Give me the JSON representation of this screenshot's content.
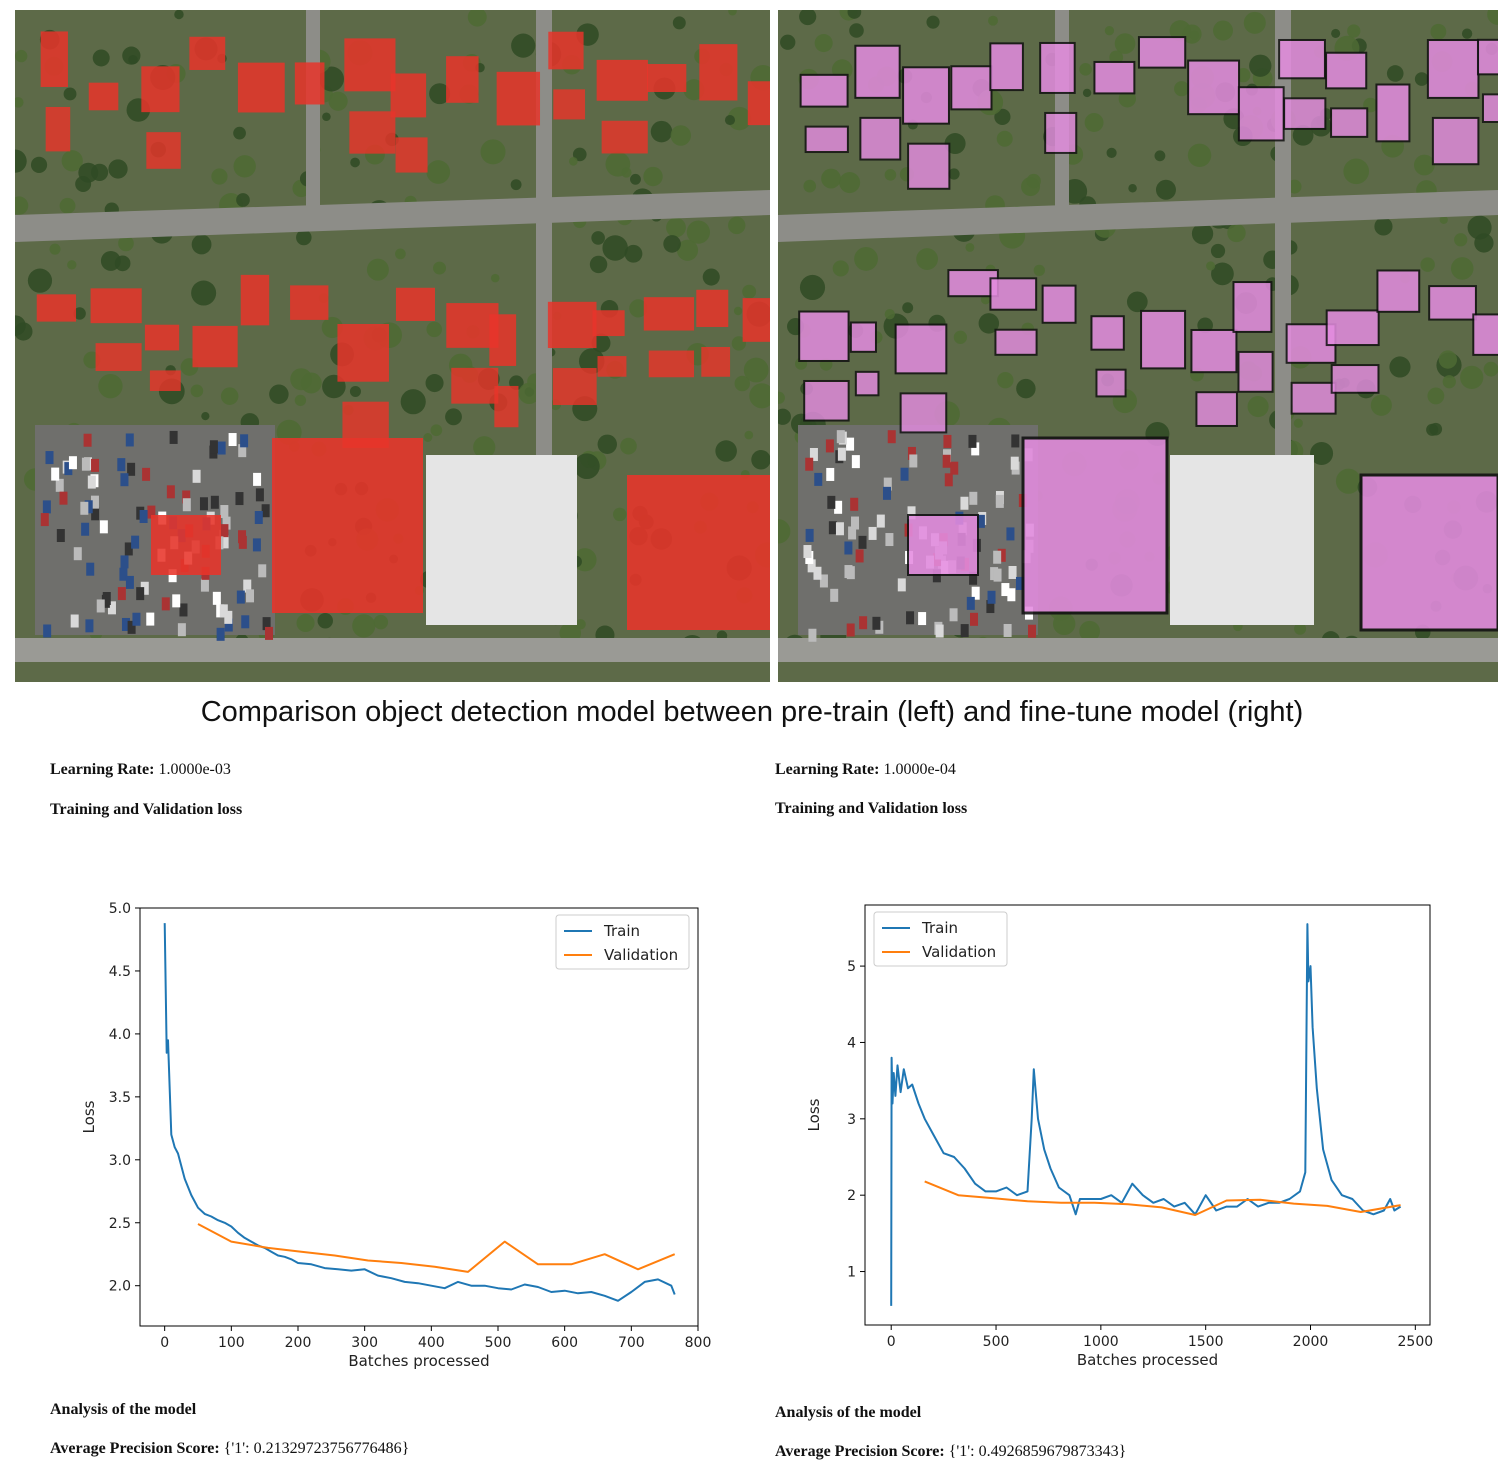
{
  "caption": "Comparison object detection model between pre-train (left) and fine-tune model (right)",
  "colors": {
    "train": "#1f77b4",
    "validation": "#ff7f0e",
    "pretrain_mask": "#e8342a",
    "finetune_mask": "#e48ce0"
  },
  "panels": [
    {
      "learning_rate_label": "Learning Rate:",
      "learning_rate_value": "1.0000e-03",
      "loss_heading": "Training and Validation loss",
      "analysis_heading": "Analysis of the model",
      "ap_label": "Average Precision Score:",
      "ap_value": "{'1': 0.21329723756776486}"
    },
    {
      "learning_rate_label": "Learning Rate:",
      "learning_rate_value": "1.0000e-04",
      "loss_heading": "Training and Validation loss",
      "analysis_heading": "Analysis of the model",
      "ap_label": "Average Precision Score:",
      "ap_value": "{'1': 0.4926859679873343}"
    }
  ],
  "chart_data": [
    {
      "type": "line",
      "xlabel": "Batches processed",
      "ylabel": "Loss",
      "xlim": [
        -37,
        800
      ],
      "ylim": [
        1.68,
        5.0
      ],
      "xticks": [
        0,
        100,
        200,
        300,
        400,
        500,
        600,
        700,
        800
      ],
      "yticks": [
        2.0,
        2.5,
        3.0,
        3.5,
        4.0,
        4.5,
        5.0
      ],
      "ytick_labels": [
        "2.0",
        "2.5",
        "3.0",
        "3.5",
        "4.0",
        "4.5",
        "5.0"
      ],
      "legend": "top-right",
      "grid": false,
      "series": [
        {
          "name": "Train",
          "x": [
            0,
            3,
            5,
            10,
            15,
            20,
            30,
            40,
            50,
            60,
            70,
            80,
            90,
            100,
            110,
            120,
            130,
            140,
            150,
            160,
            170,
            180,
            190,
            200,
            220,
            240,
            260,
            280,
            300,
            320,
            340,
            360,
            380,
            400,
            420,
            440,
            460,
            480,
            500,
            520,
            540,
            560,
            580,
            600,
            620,
            640,
            660,
            680,
            700,
            720,
            740,
            760,
            765
          ],
          "y": [
            4.88,
            3.85,
            3.95,
            3.2,
            3.1,
            3.05,
            2.85,
            2.72,
            2.62,
            2.57,
            2.55,
            2.52,
            2.5,
            2.47,
            2.42,
            2.38,
            2.35,
            2.32,
            2.3,
            2.27,
            2.24,
            2.23,
            2.21,
            2.18,
            2.17,
            2.14,
            2.13,
            2.12,
            2.13,
            2.08,
            2.06,
            2.03,
            2.02,
            2.0,
            1.98,
            2.03,
            2.0,
            2.0,
            1.98,
            1.97,
            2.01,
            1.99,
            1.95,
            1.96,
            1.94,
            1.95,
            1.92,
            1.88,
            1.95,
            2.03,
            2.05,
            2.0,
            1.93
          ]
        },
        {
          "name": "Validation",
          "x": [
            50,
            100,
            155,
            205,
            255,
            305,
            355,
            405,
            455,
            510,
            560,
            610,
            660,
            710,
            765
          ],
          "y": [
            2.49,
            2.35,
            2.3,
            2.27,
            2.24,
            2.2,
            2.18,
            2.15,
            2.11,
            2.35,
            2.17,
            2.17,
            2.25,
            2.13,
            2.25
          ]
        }
      ]
    },
    {
      "type": "line",
      "xlabel": "Batches processed",
      "ylabel": "Loss",
      "xlim": [
        -125,
        2570
      ],
      "ylim": [
        0.3,
        5.8
      ],
      "xticks": [
        0,
        500,
        1000,
        1500,
        2000,
        2500
      ],
      "yticks": [
        1,
        2,
        3,
        4,
        5
      ],
      "ytick_labels": [
        "1",
        "2",
        "3",
        "4",
        "5"
      ],
      "legend": "top-left",
      "grid": false,
      "series": [
        {
          "name": "Train",
          "x": [
            0,
            2,
            6,
            12,
            20,
            30,
            45,
            60,
            80,
            100,
            130,
            160,
            200,
            250,
            300,
            350,
            400,
            450,
            500,
            550,
            600,
            650,
            670,
            680,
            700,
            730,
            760,
            800,
            850,
            880,
            900,
            950,
            1000,
            1050,
            1100,
            1150,
            1200,
            1250,
            1300,
            1350,
            1400,
            1450,
            1500,
            1550,
            1600,
            1650,
            1700,
            1750,
            1800,
            1850,
            1900,
            1950,
            1975,
            1985,
            1990,
            2000,
            2010,
            2030,
            2060,
            2100,
            2150,
            2200,
            2250,
            2300,
            2350,
            2380,
            2400,
            2430
          ],
          "y": [
            0.55,
            3.8,
            3.2,
            3.6,
            3.3,
            3.7,
            3.35,
            3.65,
            3.4,
            3.45,
            3.2,
            3.0,
            2.8,
            2.55,
            2.5,
            2.35,
            2.15,
            2.05,
            2.05,
            2.1,
            2.0,
            2.05,
            3.0,
            3.65,
            3.0,
            2.6,
            2.35,
            2.1,
            2.0,
            1.75,
            1.95,
            1.95,
            1.95,
            2.0,
            1.9,
            2.15,
            2.0,
            1.9,
            1.95,
            1.85,
            1.9,
            1.75,
            2.0,
            1.8,
            1.85,
            1.85,
            1.95,
            1.85,
            1.9,
            1.9,
            1.95,
            2.05,
            2.3,
            5.55,
            4.8,
            5.0,
            4.2,
            3.4,
            2.6,
            2.2,
            2.0,
            1.95,
            1.8,
            1.75,
            1.8,
            1.95,
            1.8,
            1.85
          ]
        },
        {
          "name": "Validation",
          "x": [
            160,
            320,
            490,
            650,
            810,
            970,
            1130,
            1290,
            1450,
            1600,
            1760,
            1920,
            2080,
            2240,
            2430
          ],
          "y": [
            2.18,
            2.0,
            1.96,
            1.92,
            1.9,
            1.9,
            1.88,
            1.84,
            1.74,
            1.93,
            1.94,
            1.89,
            1.86,
            1.78,
            1.87
          ]
        }
      ]
    }
  ]
}
